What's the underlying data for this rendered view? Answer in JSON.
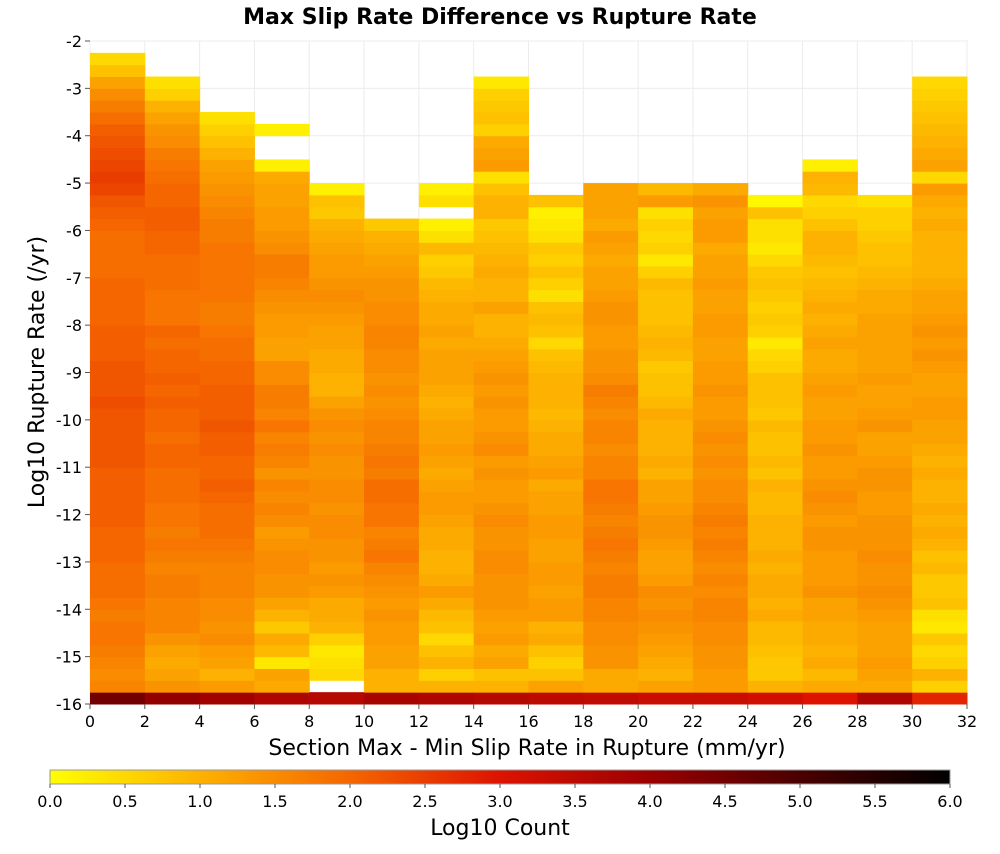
{
  "chart_data": {
    "type": "heatmap",
    "title": "Max Slip Rate Difference vs Rupture Rate",
    "xlabel": "Section Max - Min Slip Rate in Rupture (mm/yr)",
    "ylabel": "Log10 Rupture Rate (/yr)",
    "xlim": [
      0,
      32
    ],
    "ylim": [
      -16,
      -2
    ],
    "x_ticks": [
      "0",
      "2",
      "4",
      "6",
      "8",
      "10",
      "12",
      "14",
      "16",
      "18",
      "20",
      "22",
      "24",
      "26",
      "28",
      "30",
      "32"
    ],
    "y_ticks": [
      "-2",
      "-3",
      "-4",
      "-5",
      "-6",
      "-7",
      "-8",
      "-9",
      "-10",
      "-11",
      "-12",
      "-13",
      "-14",
      "-15",
      "-16"
    ],
    "x_bin_width": 2,
    "y_bin_height": 0.25,
    "x_bin_starts": [
      0,
      2,
      4,
      6,
      8,
      10,
      12,
      14,
      16,
      18,
      20,
      22,
      24,
      26,
      28,
      30
    ],
    "y_bin_bottom_first": -16,
    "y_cells_note": "Each inner array: log10 count values from y=-16 (bottom) upward in 0.25 steps; null = empty bin",
    "values": [
      [
        4.5,
        1.6,
        1.5,
        1.6,
        1.7,
        1.8,
        1.8,
        1.7,
        1.8,
        1.9,
        1.9,
        1.9,
        2.0,
        2.0,
        2.0,
        2.1,
        2.1,
        2.1,
        2.1,
        2.1,
        2.2,
        2.2,
        2.2,
        2.2,
        2.2,
        2.3,
        2.2,
        2.2,
        2.2,
        2.1,
        2.1,
        2.1,
        2.0,
        2.0,
        2.0,
        2.0,
        1.9,
        1.9,
        1.9,
        1.9,
        2.0,
        2.1,
        2.2,
        2.4,
        2.5,
        2.4,
        2.3,
        2.2,
        2.1,
        1.9,
        1.7,
        1.5,
        1.2,
        0.8,
        0.5
      ],
      [
        4.1,
        1.4,
        1.2,
        1.1,
        1.2,
        1.4,
        1.6,
        1.6,
        1.6,
        1.7,
        1.7,
        1.6,
        1.7,
        1.8,
        1.7,
        1.8,
        1.8,
        1.9,
        1.9,
        1.9,
        2.0,
        2.0,
        1.9,
        2.0,
        2.0,
        2.1,
        2.0,
        2.1,
        2.0,
        2.0,
        1.9,
        2.0,
        1.8,
        1.8,
        1.8,
        1.9,
        1.9,
        1.9,
        2.0,
        2.0,
        2.1,
        2.1,
        2.0,
        2.0,
        1.9,
        1.8,
        1.7,
        1.5,
        1.4,
        1.2,
        1.0,
        0.6,
        0.4
      ],
      [
        3.9,
        1.3,
        1.0,
        1.2,
        1.3,
        1.5,
        1.4,
        1.5,
        1.5,
        1.6,
        1.6,
        1.6,
        1.7,
        1.8,
        1.9,
        1.9,
        1.9,
        2.0,
        2.1,
        2.0,
        2.0,
        2.1,
        2.1,
        2.2,
        2.1,
        2.1,
        2.1,
        2.0,
        2.0,
        1.9,
        1.9,
        1.8,
        1.7,
        1.7,
        1.8,
        1.8,
        1.8,
        1.8,
        1.8,
        1.7,
        1.7,
        1.6,
        1.5,
        1.4,
        1.3,
        1.2,
        1.0,
        0.8,
        0.6,
        0.4
      ],
      [
        3.7,
        1.1,
        1.2,
        0.3,
        0.9,
        1.1,
        0.7,
        1.0,
        1.2,
        1.4,
        1.4,
        1.5,
        1.5,
        1.4,
        1.3,
        1.5,
        1.6,
        1.5,
        1.6,
        1.4,
        1.6,
        1.7,
        1.6,
        1.8,
        1.6,
        1.7,
        1.7,
        1.5,
        1.5,
        1.2,
        1.2,
        1.3,
        1.3,
        1.4,
        1.5,
        1.6,
        1.7,
        1.7,
        1.5,
        1.4,
        1.3,
        1.3,
        1.2,
        1.2,
        1.1,
        0.2,
        null,
        null,
        0.2
      ],
      [
        3.6,
        null,
        0.5,
        0.4,
        0.3,
        0.6,
        1.0,
        1.1,
        1.1,
        1.3,
        1.4,
        1.3,
        1.4,
        1.4,
        1.5,
        1.5,
        1.4,
        1.5,
        1.5,
        1.4,
        1.4,
        1.5,
        1.4,
        1.5,
        1.4,
        1.2,
        1.0,
        1.0,
        1.1,
        1.1,
        1.2,
        1.2,
        1.3,
        1.4,
        1.5,
        1.4,
        1.3,
        1.3,
        1.2,
        1.1,
        1.0,
        0.7,
        0.8,
        0.2
      ],
      [
        3.8,
        1.0,
        1.0,
        1.2,
        1.2,
        1.3,
        1.3,
        1.4,
        1.3,
        1.4,
        1.5,
        1.6,
        1.8,
        1.7,
        1.6,
        1.8,
        1.8,
        1.9,
        1.9,
        1.7,
        1.8,
        1.7,
        1.6,
        1.6,
        1.5,
        1.4,
        1.5,
        1.4,
        1.5,
        1.5,
        1.6,
        1.6,
        1.5,
        1.5,
        1.4,
        1.4,
        1.3,
        1.2,
        1.1,
        1.0,
        0.7
      ],
      [
        3.7,
        1.0,
        0.6,
        1.0,
        0.8,
        0.5,
        0.8,
        0.9,
        1.1,
        1.3,
        1.1,
        1.0,
        1.0,
        1.1,
        1.1,
        1.2,
        1.3,
        1.3,
        1.2,
        1.1,
        1.2,
        1.3,
        1.2,
        1.2,
        1.1,
        1.0,
        1.1,
        1.2,
        1.2,
        1.2,
        1.1,
        1.2,
        1.1,
        1.1,
        1.0,
        0.9,
        0.7,
        0.6,
        0.9,
        0.4,
        0.2,
        null,
        0.4,
        0.2
      ],
      [
        3.6,
        1.0,
        0.8,
        1.2,
        1.1,
        1.3,
        1.2,
        1.3,
        1.4,
        1.4,
        1.4,
        1.5,
        1.5,
        1.4,
        1.4,
        1.5,
        1.4,
        1.3,
        1.3,
        1.4,
        1.3,
        1.5,
        1.4,
        1.3,
        1.3,
        1.4,
        1.3,
        1.4,
        1.3,
        1.2,
        1.1,
        1.0,
        1.0,
        1.2,
        1.0,
        1.0,
        1.1,
        1.0,
        0.9,
        0.8,
        0.7,
        1.0,
        1.0,
        0.8,
        0.4,
        1.3,
        1.2,
        1.1,
        0.6,
        0.8,
        0.7,
        0.6,
        0.3
      ],
      [
        3.5,
        1.2,
        0.8,
        0.6,
        0.8,
        1.1,
        1.0,
        1.3,
        1.3,
        1.2,
        1.3,
        1.3,
        1.2,
        1.2,
        1.3,
        1.3,
        1.2,
        1.2,
        1.1,
        1.3,
        1.2,
        1.1,
        1.1,
        1.0,
        0.9,
        1.0,
        1.0,
        1.0,
        0.9,
        0.8,
        0.5,
        0.8,
        0.9,
        0.8,
        0.4,
        0.6,
        0.8,
        0.6,
        0.7,
        0.4,
        0.3,
        0.2,
        0.8
      ],
      [
        3.4,
        1.1,
        1.1,
        1.4,
        1.4,
        1.5,
        1.5,
        1.6,
        1.6,
        1.7,
        1.7,
        1.6,
        1.7,
        1.8,
        1.7,
        1.6,
        1.7,
        1.8,
        1.8,
        1.6,
        1.6,
        1.5,
        1.6,
        1.6,
        1.5,
        1.6,
        1.7,
        1.5,
        1.4,
        1.4,
        1.3,
        1.3,
        1.4,
        1.4,
        1.3,
        1.2,
        1.2,
        1.1,
        1.2,
        1.3,
        1.1,
        1.2,
        1.2,
        1.2
      ],
      [
        3.3,
        1.2,
        1.0,
        1.1,
        1.2,
        1.3,
        1.4,
        1.5,
        1.4,
        1.5,
        1.3,
        1.2,
        1.2,
        1.3,
        1.4,
        1.4,
        1.3,
        1.2,
        1.2,
        1.0,
        1.1,
        1.0,
        1.0,
        1.0,
        1.1,
        0.9,
        0.8,
        0.8,
        0.7,
        0.9,
        1.0,
        0.9,
        0.8,
        0.8,
        0.8,
        0.9,
        0.6,
        0.3,
        0.6,
        0.5,
        0.6,
        0.4,
        1.3,
        0.9
      ],
      [
        3.3,
        1.3,
        1.3,
        1.4,
        1.4,
        1.5,
        1.5,
        1.6,
        1.6,
        1.5,
        1.6,
        1.5,
        1.6,
        1.7,
        1.6,
        1.7,
        1.6,
        1.5,
        1.5,
        1.4,
        1.5,
        1.4,
        1.5,
        1.4,
        1.3,
        1.3,
        1.4,
        1.3,
        1.3,
        1.2,
        1.2,
        1.3,
        1.3,
        1.2,
        1.2,
        1.3,
        1.2,
        1.2,
        1.1,
        1.3,
        1.3,
        1.2,
        1.4,
        1.1
      ],
      [
        3.2,
        1.0,
        0.7,
        0.7,
        0.8,
        0.9,
        0.9,
        1.1,
        1.0,
        1.1,
        1.1,
        1.0,
        1.1,
        1.0,
        1.0,
        1.0,
        0.9,
        0.9,
        1.0,
        0.8,
        0.9,
        0.8,
        0.8,
        0.9,
        0.7,
        0.8,
        0.8,
        0.8,
        0.6,
        0.5,
        0.3,
        0.6,
        0.7,
        0.6,
        0.7,
        0.8,
        0.7,
        0.5,
        0.3,
        0.4,
        0.4,
        0.8,
        0.1
      ],
      [
        3.0,
        1.1,
        0.9,
        1.1,
        1.0,
        1.1,
        1.1,
        1.2,
        1.2,
        1.4,
        1.3,
        1.3,
        1.3,
        1.4,
        1.4,
        1.3,
        1.4,
        1.5,
        1.4,
        1.3,
        1.3,
        1.4,
        1.3,
        1.3,
        1.2,
        1.2,
        1.3,
        1.2,
        1.1,
        1.1,
        1.2,
        1.1,
        1.0,
        1.1,
        1.0,
        0.9,
        0.8,
        0.9,
        1.0,
        1.0,
        0.8,
        0.6,
        0.5,
        0.9,
        1.0,
        0.2
      ],
      [
        3.7,
        1.1,
        1.2,
        1.3,
        1.2,
        1.2,
        1.2,
        1.3,
        1.4,
        1.5,
        1.4,
        1.4,
        1.5,
        1.4,
        1.4,
        1.4,
        1.3,
        1.3,
        1.4,
        1.4,
        1.3,
        1.2,
        1.2,
        1.4,
        1.3,
        1.2,
        1.2,
        1.3,
        1.2,
        1.2,
        1.2,
        1.2,
        1.2,
        1.1,
        1.1,
        1.0,
        0.9,
        0.8,
        0.8,
        0.7,
        0.6,
        0.6,
        0.4
      ],
      [
        2.8,
        0.6,
        1.0,
        0.6,
        0.5,
        0.7,
        0.3,
        0.4,
        0.8,
        0.7,
        0.7,
        0.9,
        0.8,
        1.0,
        1.1,
        1.0,
        1.1,
        1.0,
        1.0,
        1.1,
        1.0,
        1.1,
        1.2,
        1.2,
        1.3,
        1.3,
        1.2,
        1.2,
        1.3,
        1.4,
        1.3,
        1.4,
        1.3,
        1.2,
        1.2,
        1.1,
        1.0,
        1.0,
        1.0,
        1.0,
        1.1,
        1.0,
        1.1,
        1.3,
        0.5,
        1.2,
        1.1,
        1.0,
        0.9,
        0.8,
        0.7,
        0.6,
        0.5
      ]
    ],
    "colorbar": {
      "label": "Log10 Count",
      "min": 0.0,
      "max": 6.0,
      "ticks": [
        "0.0",
        "0.5",
        "1.0",
        "1.5",
        "2.0",
        "2.5",
        "3.0",
        "3.5",
        "4.0",
        "4.5",
        "5.0",
        "5.5",
        "6.0"
      ],
      "stops": [
        "#ffff00",
        "#fdb100",
        "#f56600",
        "#dd1300",
        "#9a0000",
        "#4a0000",
        "#000000"
      ]
    },
    "grid": true
  }
}
